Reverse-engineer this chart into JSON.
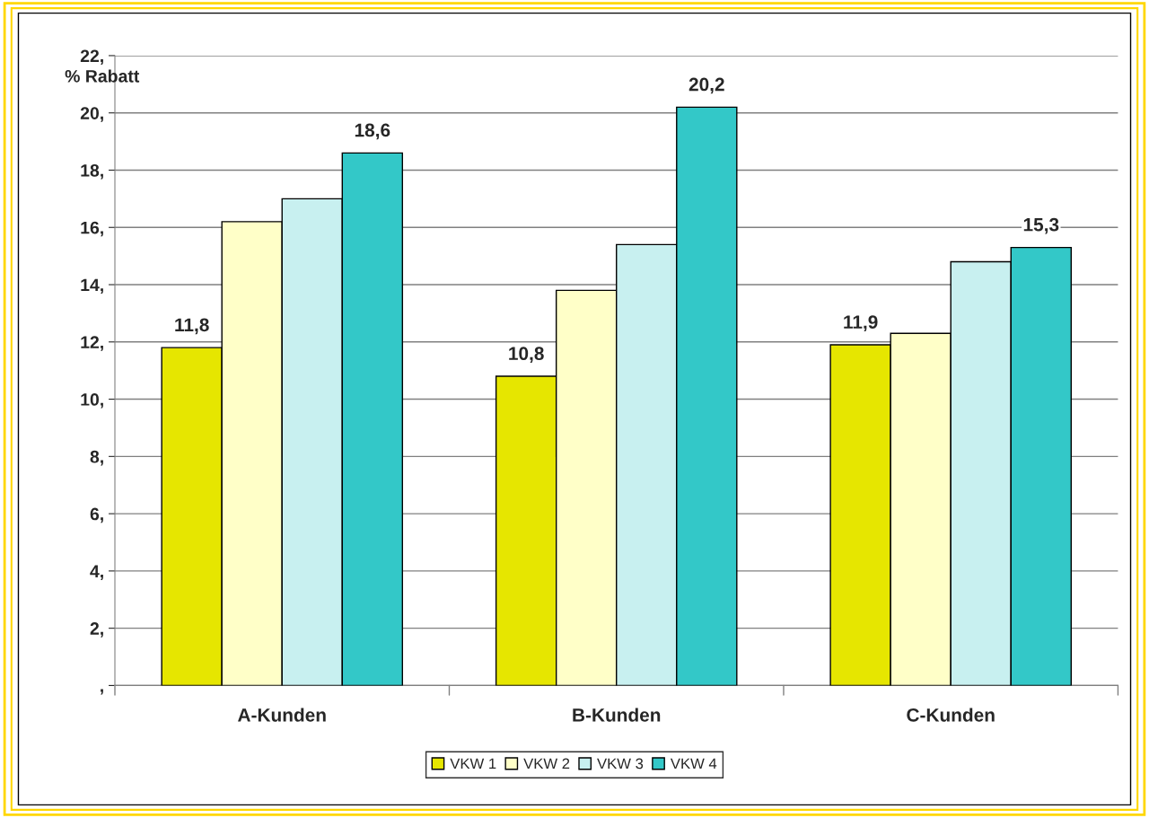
{
  "chart_data": {
    "type": "bar",
    "ylabel": "% Rabatt",
    "categories": [
      "A-Kunden",
      "B-Kunden",
      "C-Kunden"
    ],
    "series": [
      {
        "name": "VKW 1",
        "color": "#e6e600",
        "values": [
          11.8,
          10.8,
          11.9
        ],
        "value_labels": [
          "11,8",
          "10,8",
          "11,9"
        ]
      },
      {
        "name": "VKW 2",
        "color": "#ffffc8",
        "values": [
          16.2,
          13.8,
          12.3
        ]
      },
      {
        "name": "VKW 3",
        "color": "#c8f0f0",
        "values": [
          17.0,
          15.4,
          14.8
        ]
      },
      {
        "name": "VKW 4",
        "color": "#33c8c8",
        "values": [
          18.6,
          20.2,
          15.3
        ],
        "value_labels": [
          "18,6",
          "20,2",
          "15,3"
        ]
      }
    ],
    "ylim": [
      0,
      22
    ],
    "yticks": [
      {
        "value": 0,
        "label": ","
      },
      {
        "value": 2,
        "label": "2,"
      },
      {
        "value": 4,
        "label": "4,"
      },
      {
        "value": 6,
        "label": "6,"
      },
      {
        "value": 8,
        "label": "8,"
      },
      {
        "value": 10,
        "label": "10,"
      },
      {
        "value": 12,
        "label": "12,"
      },
      {
        "value": 14,
        "label": "14,"
      },
      {
        "value": 16,
        "label": "16,"
      },
      {
        "value": 18,
        "label": "18,"
      },
      {
        "value": 20,
        "label": "20,"
      },
      {
        "value": 22,
        "label": "22,"
      }
    ],
    "grid": "y",
    "legend": "bottom"
  }
}
